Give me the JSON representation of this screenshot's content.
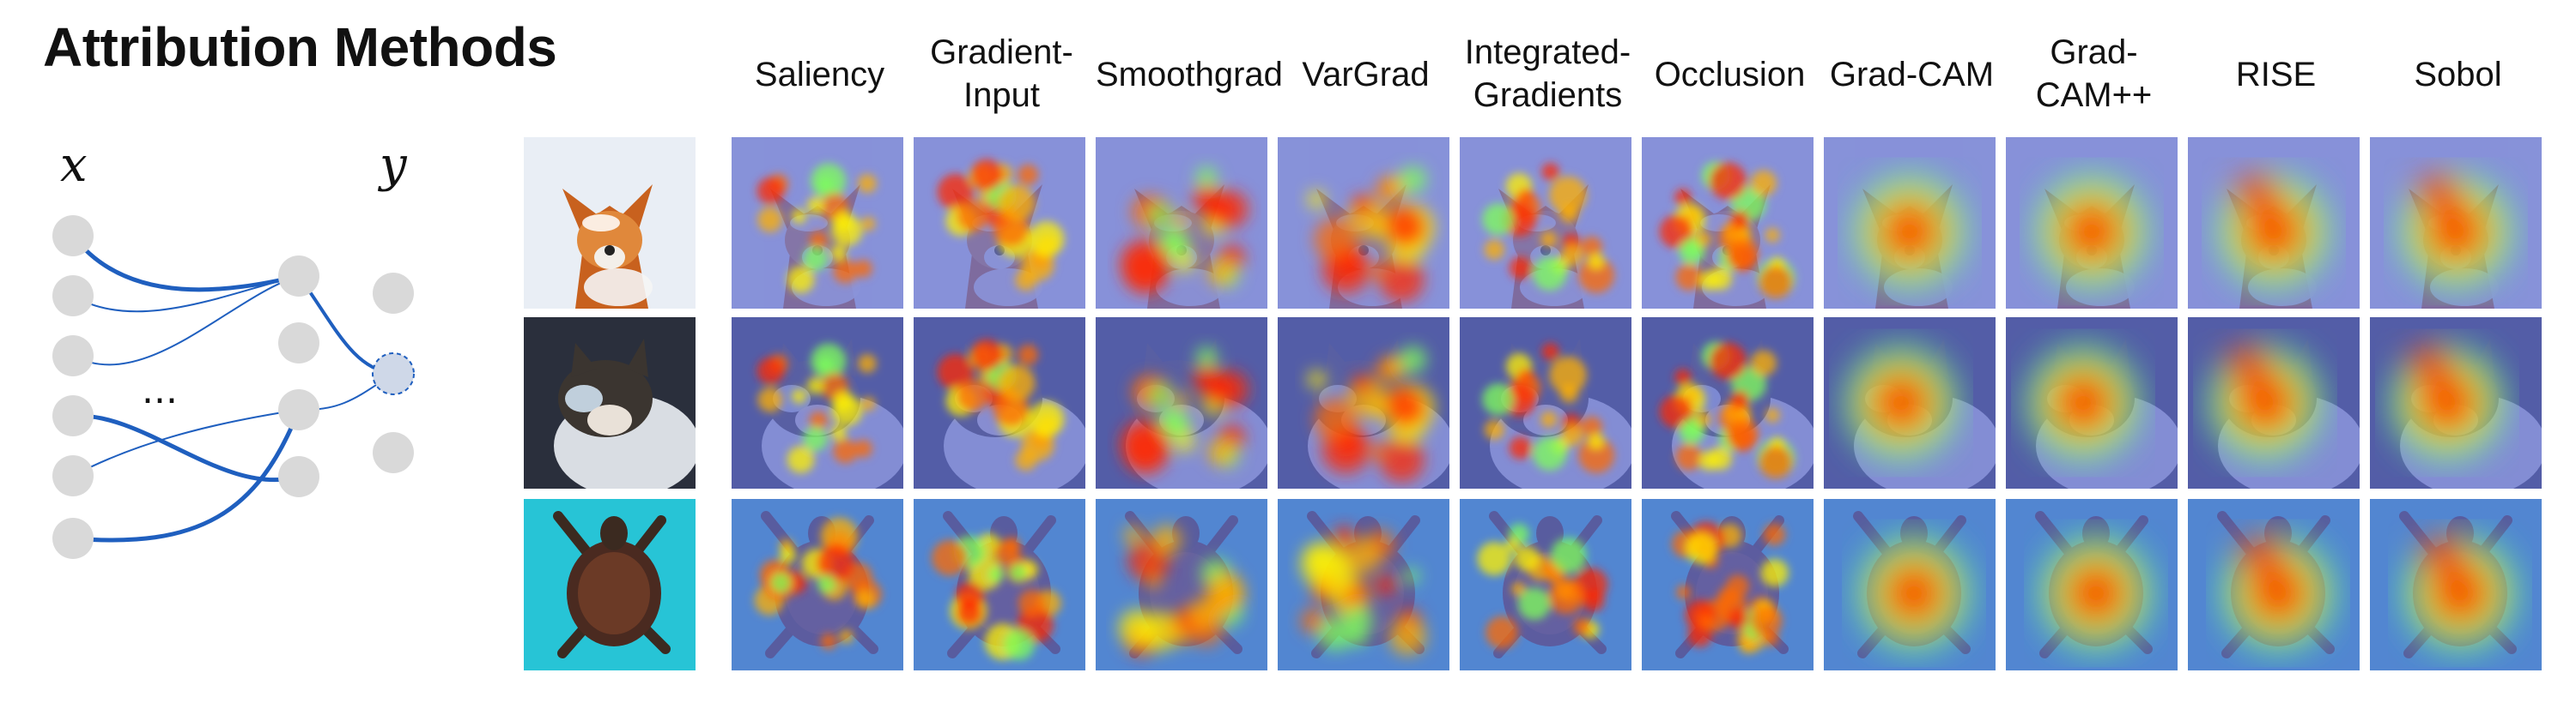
{
  "title": "Attribution Methods",
  "network": {
    "input_label": "x",
    "output_label": "y",
    "ellipsis": "..."
  },
  "methods": [
    "Saliency",
    "Gradient-\nInput",
    "Smoothgrad",
    "VarGrad",
    "Integrated-\nGradients",
    "Occlusion",
    "Grad-CAM",
    "Grad-\nCAM++",
    "RISE",
    "Sobol"
  ],
  "colors": {
    "node": "#d9d9d9",
    "edge": "#1f5fbf",
    "output_node": "#cfd8e8"
  },
  "rows": [
    {
      "image": "fox",
      "background": "#dfe6f0"
    },
    {
      "image": "cat",
      "background": "#2b3040"
    },
    {
      "image": "turtle",
      "background": "#27c4d6"
    }
  ]
}
